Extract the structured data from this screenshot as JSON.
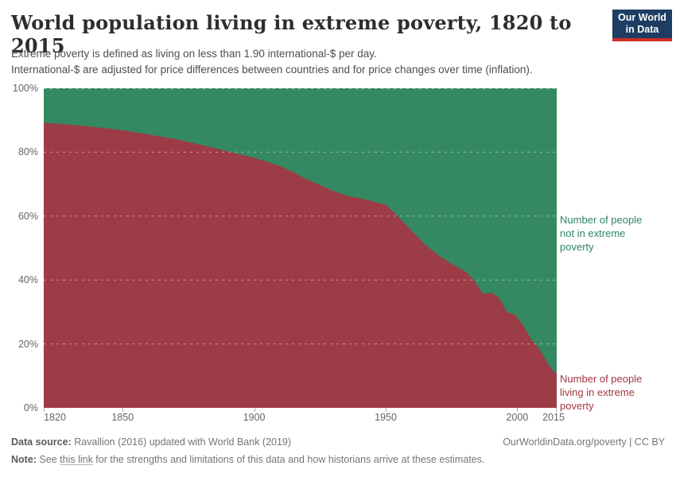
{
  "header": {
    "title": "World population living in extreme poverty, 1820 to 2015",
    "subtitle_line1": "Extreme poverty is defined as living on less than 1.90 international-$ per day.",
    "subtitle_line2": "International-$ are adjusted for price differences between countries and for price changes over time (inflation)."
  },
  "logo": {
    "line1": "Our World",
    "line2": "in Data",
    "bg_color": "#1d3d63",
    "stripe_color": "#cf2d27"
  },
  "chart_data": {
    "type": "area",
    "stacked": true,
    "title": "World population living in extreme poverty, 1820 to 2015",
    "xlabel": "",
    "ylabel": "",
    "x_range": [
      1820,
      2015
    ],
    "y_range_percent": [
      0,
      100
    ],
    "x_ticks": [
      1820,
      1850,
      1900,
      1950,
      2000,
      2015
    ],
    "y_ticks": [
      {
        "value": 0,
        "label": "0%"
      },
      {
        "value": 20,
        "label": "20%"
      },
      {
        "value": 40,
        "label": "40%"
      },
      {
        "value": 60,
        "label": "60%"
      },
      {
        "value": 80,
        "label": "80%"
      },
      {
        "value": 100,
        "label": "100%"
      }
    ],
    "grid": "horizontal-dashed",
    "legend_position": "right-edge-annotations",
    "annotations": {
      "green_label": "Number of people not in extreme poverty",
      "red_label": "Number of people living in extreme poverty"
    },
    "series": [
      {
        "name": "Number of people living in extreme poverty",
        "color": "#9c3c46",
        "unit": "% of world population",
        "points": [
          [
            1820,
            89.2
          ],
          [
            1830,
            88.6
          ],
          [
            1840,
            87.8
          ],
          [
            1850,
            86.9
          ],
          [
            1860,
            85.5
          ],
          [
            1870,
            84.1
          ],
          [
            1880,
            82.3
          ],
          [
            1890,
            80.3
          ],
          [
            1900,
            78.2
          ],
          [
            1905,
            77.0
          ],
          [
            1910,
            75.6
          ],
          [
            1915,
            73.7
          ],
          [
            1920,
            71.5
          ],
          [
            1925,
            69.7
          ],
          [
            1929,
            68.2
          ],
          [
            1935,
            66.4
          ],
          [
            1940,
            65.6
          ],
          [
            1945,
            64.6
          ],
          [
            1950,
            63.6
          ],
          [
            1955,
            59.6
          ],
          [
            1960,
            55.3
          ],
          [
            1965,
            51.1
          ],
          [
            1970,
            47.7
          ],
          [
            1975,
            45.1
          ],
          [
            1978,
            43.7
          ],
          [
            1981,
            42.2
          ],
          [
            1984,
            39.4
          ],
          [
            1987,
            35.6
          ],
          [
            1990,
            36.1
          ],
          [
            1993,
            34.6
          ],
          [
            1996,
            30.0
          ],
          [
            1999,
            29.2
          ],
          [
            2002,
            26.2
          ],
          [
            2005,
            21.8
          ],
          [
            2008,
            18.8
          ],
          [
            2010,
            16.2
          ],
          [
            2011,
            14.8
          ],
          [
            2012,
            13.4
          ],
          [
            2013,
            12.2
          ],
          [
            2015,
            10.6
          ]
        ]
      },
      {
        "name": "Number of people not in extreme poverty",
        "color": "#348962",
        "unit": "% of world population",
        "derivation": "100 minus the extreme-poverty share at each year (stacked to 100%)"
      }
    ]
  },
  "footer": {
    "source_label": "Data source:",
    "source_text": " Ravallion (2016) updated with World Bank (2019)",
    "attribution": "OurWorldinData.org/poverty | CC BY",
    "note_label": "Note:",
    "note_pre": " See ",
    "note_link": "this link",
    "note_post": " for the strengths and limitations of this data and how historians arrive at these estimates."
  }
}
